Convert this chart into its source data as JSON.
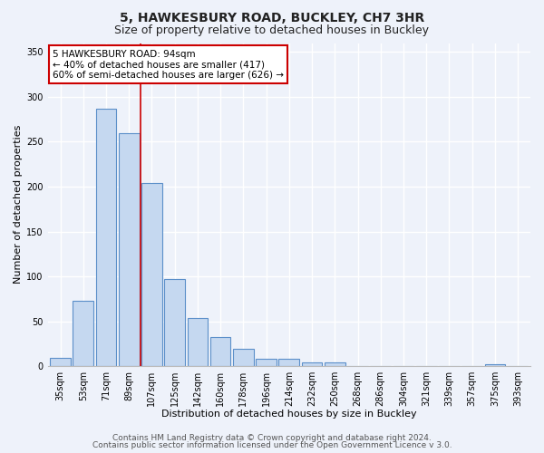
{
  "title": "5, HAWKESBURY ROAD, BUCKLEY, CH7 3HR",
  "subtitle": "Size of property relative to detached houses in Buckley",
  "xlabel": "Distribution of detached houses by size in Buckley",
  "ylabel": "Number of detached properties",
  "bar_labels": [
    "35sqm",
    "53sqm",
    "71sqm",
    "89sqm",
    "107sqm",
    "125sqm",
    "142sqm",
    "160sqm",
    "178sqm",
    "196sqm",
    "214sqm",
    "232sqm",
    "250sqm",
    "268sqm",
    "286sqm",
    "304sqm",
    "321sqm",
    "339sqm",
    "357sqm",
    "375sqm",
    "393sqm"
  ],
  "bar_values": [
    9,
    73,
    287,
    260,
    204,
    97,
    54,
    32,
    19,
    8,
    8,
    4,
    4,
    0,
    0,
    0,
    0,
    0,
    0,
    2,
    0
  ],
  "bar_color": "#c5d8f0",
  "bar_edge_color": "#5b8fc9",
  "vline_x": 3.5,
  "vline_color": "#cc0000",
  "ylim": [
    0,
    360
  ],
  "yticks": [
    0,
    50,
    100,
    150,
    200,
    250,
    300,
    350
  ],
  "annotation_title": "5 HAWKESBURY ROAD: 94sqm",
  "annotation_line1": "← 40% of detached houses are smaller (417)",
  "annotation_line2": "60% of semi-detached houses are larger (626) →",
  "annotation_box_color": "#ffffff",
  "annotation_box_edge": "#cc0000",
  "footer1": "Contains HM Land Registry data © Crown copyright and database right 2024.",
  "footer2": "Contains public sector information licensed under the Open Government Licence v 3.0.",
  "background_color": "#eef2fa",
  "grid_color": "#ffffff",
  "title_fontsize": 10,
  "subtitle_fontsize": 9,
  "axis_label_fontsize": 8,
  "tick_fontsize": 7,
  "footer_fontsize": 6.5
}
